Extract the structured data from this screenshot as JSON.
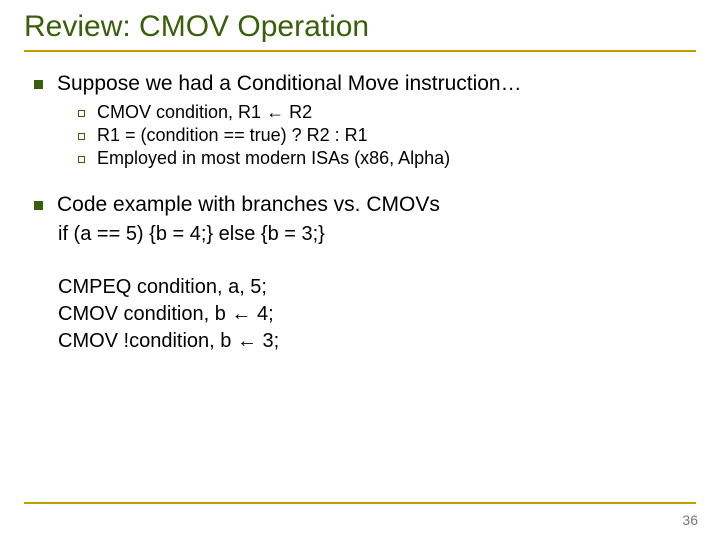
{
  "title": "Review: CMOV Operation",
  "title_color": "#3a5f0b",
  "title_fontsize": 30,
  "rule_color": "#c0a000",
  "bullet_color": "#3a5f0b",
  "body_color": "#000000",
  "background_color": "#ffffff",
  "page_number": "36",
  "page_number_color": "#777777",
  "level1": [
    {
      "text": "Suppose we had a Conditional Move instruction…",
      "level2": [
        "CMOV condition, R1 ← R2",
        "R1 = (condition == true) ? R2 : R1",
        "Employed in most modern ISAs (x86, Alpha)"
      ]
    },
    {
      "text": "Code example with branches vs. CMOVs",
      "level2": []
    }
  ],
  "sub_block_1": [
    "if (a == 5) {b = 4;} else {b = 3;}"
  ],
  "sub_block_2": [
    "CMPEQ condition, a, 5;",
    "CMOV condition, b ← 4;",
    "CMOV !condition, b ← 3;"
  ],
  "l1_fontsize": 21,
  "l2_fontsize": 18,
  "sub_fontsize": 20
}
